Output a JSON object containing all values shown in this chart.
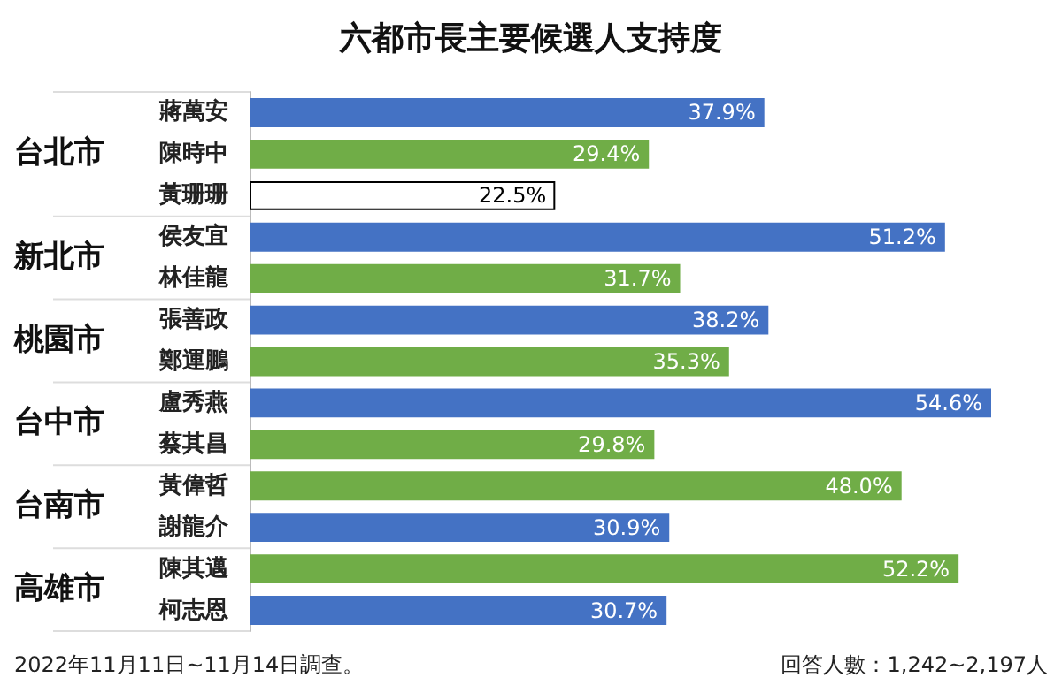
{
  "chart_data": {
    "type": "bar",
    "title": "六都市長主要候選人支持度",
    "orientation": "horizontal",
    "categories": [
      "蔣萬安",
      "陳時中",
      "黃珊珊",
      "侯友宜",
      "林佳龍",
      "張善政",
      "鄭運鵬",
      "盧秀燕",
      "蔡其昌",
      "黃偉哲",
      "謝龍介",
      "陳其邁",
      "柯志恩"
    ],
    "values": [
      37.9,
      29.4,
      22.5,
      51.2,
      31.7,
      38.2,
      35.3,
      54.6,
      29.8,
      48.0,
      30.9,
      52.2,
      30.7
    ],
    "value_labels": [
      "37.9%",
      "29.4%",
      "22.5%",
      "51.2%",
      "31.7%",
      "38.2%",
      "35.3%",
      "54.6%",
      "29.8%",
      "48.0%",
      "30.9%",
      "52.2%",
      "30.7%"
    ],
    "colors": [
      "#4472c4",
      "#70ad47",
      "#ffffff",
      "#4472c4",
      "#70ad47",
      "#4472c4",
      "#70ad47",
      "#4472c4",
      "#70ad47",
      "#70ad47",
      "#4472c4",
      "#70ad47",
      "#4472c4"
    ],
    "y2_categories": [
      null,
      "台北市",
      null,
      "新北市",
      null,
      "桃園市",
      null,
      "台中市",
      null,
      "台南市",
      null,
      "高雄市",
      null
    ],
    "annotations": [
      "2022年11月11日~11月14日調查。",
      "回答人數：1,242~2,197人"
    ]
  }
}
